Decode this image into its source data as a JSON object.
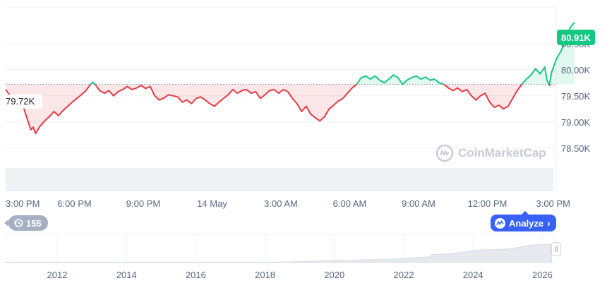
{
  "chart_data": {
    "type": "line",
    "reference_value": 79.72,
    "reference_label": "79.72K",
    "current_value": 80.91,
    "current_label": "80.91K",
    "y_unit": "K",
    "ylim": [
      78.2,
      81.2
    ],
    "y_ticks": [
      {
        "value": 79.0,
        "label": "79.00K"
      },
      {
        "value": 79.5,
        "label": "79.50K"
      },
      {
        "value": 80.0,
        "label": "80.00K"
      },
      {
        "value": 80.5,
        "label": "80.50K"
      },
      {
        "value": 78.5,
        "label": "78.50K"
      }
    ],
    "x_tick_labels": [
      "3:00 PM",
      "6:00 PM",
      "9:00 PM",
      "14 May",
      "3:00 AM",
      "6:00 AM",
      "9:00 AM",
      "12:00 PM",
      "3:00 PM"
    ],
    "xlim_hours": [
      0,
      24
    ],
    "grid": true,
    "colors": {
      "above": "#16c784",
      "below": "#ea3943"
    },
    "points": [
      [
        0,
        79.62
      ],
      [
        0.2,
        79.5
      ],
      [
        0.5,
        79.38
      ],
      [
        0.8,
        79.25
      ],
      [
        1.0,
        78.98
      ],
      [
        1.1,
        78.85
      ],
      [
        1.2,
        78.9
      ],
      [
        1.3,
        78.78
      ],
      [
        1.5,
        78.92
      ],
      [
        1.7,
        79.02
      ],
      [
        1.9,
        79.1
      ],
      [
        2.1,
        79.2
      ],
      [
        2.3,
        79.12
      ],
      [
        2.5,
        79.22
      ],
      [
        2.7,
        79.3
      ],
      [
        2.9,
        79.38
      ],
      [
        3.1,
        79.45
      ],
      [
        3.3,
        79.52
      ],
      [
        3.5,
        79.6
      ],
      [
        3.7,
        79.72
      ],
      [
        3.8,
        79.76
      ],
      [
        3.9,
        79.72
      ],
      [
        4.1,
        79.6
      ],
      [
        4.3,
        79.55
      ],
      [
        4.5,
        79.6
      ],
      [
        4.7,
        79.5
      ],
      [
        4.9,
        79.58
      ],
      [
        5.1,
        79.62
      ],
      [
        5.3,
        79.68
      ],
      [
        5.5,
        79.62
      ],
      [
        5.7,
        79.65
      ],
      [
        5.9,
        79.7
      ],
      [
        6.1,
        79.64
      ],
      [
        6.3,
        79.68
      ],
      [
        6.5,
        79.5
      ],
      [
        6.7,
        79.42
      ],
      [
        6.9,
        79.46
      ],
      [
        7.1,
        79.52
      ],
      [
        7.3,
        79.5
      ],
      [
        7.5,
        79.48
      ],
      [
        7.7,
        79.38
      ],
      [
        7.9,
        79.42
      ],
      [
        8.1,
        79.35
      ],
      [
        8.3,
        79.45
      ],
      [
        8.5,
        79.48
      ],
      [
        8.7,
        79.42
      ],
      [
        8.9,
        79.35
      ],
      [
        9.1,
        79.3
      ],
      [
        9.3,
        79.38
      ],
      [
        9.5,
        79.45
      ],
      [
        9.7,
        79.52
      ],
      [
        9.9,
        79.62
      ],
      [
        10.1,
        79.55
      ],
      [
        10.3,
        79.6
      ],
      [
        10.5,
        79.62
      ],
      [
        10.7,
        79.55
      ],
      [
        10.9,
        79.58
      ],
      [
        11.1,
        79.45
      ],
      [
        11.3,
        79.52
      ],
      [
        11.5,
        79.6
      ],
      [
        11.7,
        79.62
      ],
      [
        11.9,
        79.55
      ],
      [
        12.1,
        79.62
      ],
      [
        12.3,
        79.58
      ],
      [
        12.5,
        79.45
      ],
      [
        12.7,
        79.35
      ],
      [
        12.9,
        79.2
      ],
      [
        13.1,
        79.3
      ],
      [
        13.3,
        79.15
      ],
      [
        13.5,
        79.08
      ],
      [
        13.7,
        79.02
      ],
      [
        13.9,
        79.1
      ],
      [
        14.1,
        79.25
      ],
      [
        14.3,
        79.32
      ],
      [
        14.5,
        79.4
      ],
      [
        14.7,
        79.45
      ],
      [
        14.9,
        79.55
      ],
      [
        15.1,
        79.65
      ],
      [
        15.3,
        79.72
      ],
      [
        15.5,
        79.85
      ],
      [
        15.7,
        79.88
      ],
      [
        15.9,
        79.82
      ],
      [
        16.1,
        79.88
      ],
      [
        16.3,
        79.8
      ],
      [
        16.5,
        79.75
      ],
      [
        16.7,
        79.82
      ],
      [
        16.9,
        79.9
      ],
      [
        17.1,
        79.85
      ],
      [
        17.3,
        79.72
      ],
      [
        17.5,
        79.8
      ],
      [
        17.7,
        79.85
      ],
      [
        17.9,
        79.88
      ],
      [
        18.1,
        79.82
      ],
      [
        18.3,
        79.86
      ],
      [
        18.5,
        79.8
      ],
      [
        18.7,
        79.82
      ],
      [
        18.9,
        79.75
      ],
      [
        19.1,
        79.72
      ],
      [
        19.3,
        79.65
      ],
      [
        19.5,
        79.6
      ],
      [
        19.7,
        79.65
      ],
      [
        19.9,
        79.58
      ],
      [
        20.1,
        79.62
      ],
      [
        20.3,
        79.5
      ],
      [
        20.5,
        79.42
      ],
      [
        20.7,
        79.5
      ],
      [
        20.9,
        79.55
      ],
      [
        21.1,
        79.38
      ],
      [
        21.3,
        79.28
      ],
      [
        21.5,
        79.32
      ],
      [
        21.7,
        79.25
      ],
      [
        21.9,
        79.3
      ],
      [
        22.1,
        79.45
      ],
      [
        22.3,
        79.6
      ],
      [
        22.5,
        79.72
      ],
      [
        22.7,
        79.82
      ],
      [
        22.9,
        79.9
      ],
      [
        23.1,
        80.02
      ],
      [
        23.3,
        79.92
      ],
      [
        23.5,
        80.05
      ],
      [
        23.6,
        79.8
      ],
      [
        23.7,
        79.7
      ],
      [
        23.8,
        79.95
      ],
      [
        24.0,
        80.2
      ],
      [
        24.2,
        80.35
      ],
      [
        24.4,
        80.55
      ],
      [
        24.6,
        80.8
      ],
      [
        24.8,
        80.91
      ]
    ]
  },
  "navigator": {
    "year_labels": [
      "2012",
      "2014",
      "2016",
      "2018",
      "2020",
      "2022",
      "2024",
      "2026"
    ]
  },
  "history_badge": {
    "icon": "history-icon",
    "count": "155"
  },
  "analyze_button": {
    "label": "Analyze",
    "icon": "analyze-icon"
  },
  "watermark": {
    "text": "CoinMarketCap"
  }
}
